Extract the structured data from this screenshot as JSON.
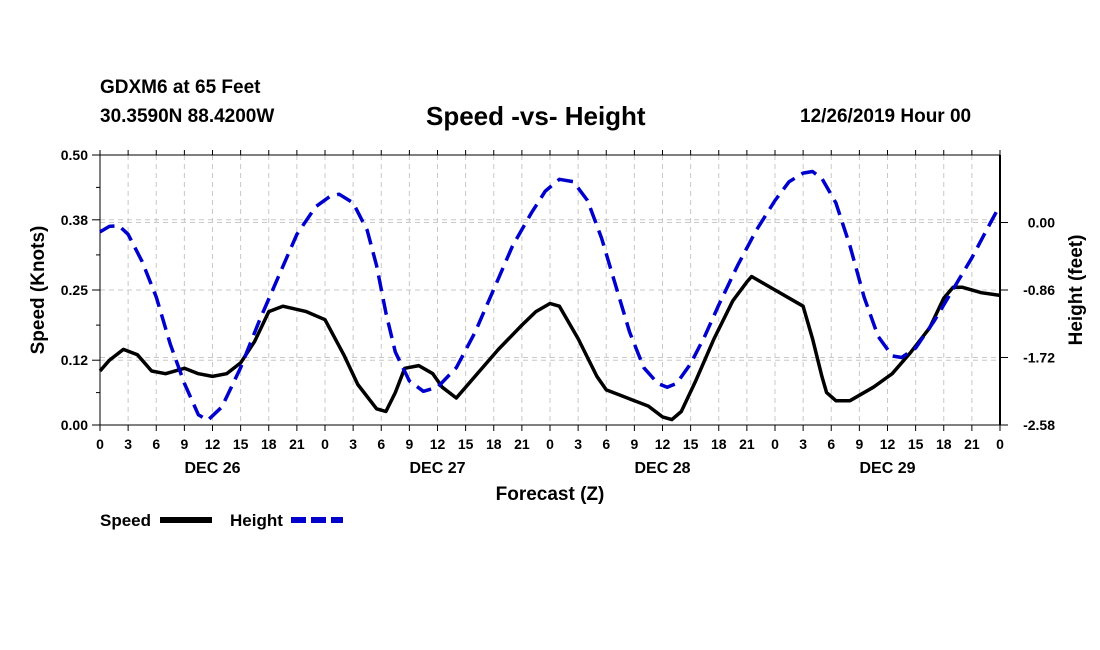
{
  "header": {
    "station": "GDXM6 at 65 Feet",
    "coords": "30.3590N 88.4200W",
    "title": "Speed -vs- Height",
    "date": "12/26/2019 Hour 00"
  },
  "chart_data": {
    "type": "line",
    "title": "Speed -vs- Height",
    "xlabel": "Forecast (Z)",
    "ylabel": "Speed (Knots)",
    "y2label": "Height (feet)",
    "x_range_hours": [
      0,
      96
    ],
    "ylim": [
      0,
      0.5
    ],
    "y2lim": [
      -2.58,
      0.86
    ],
    "grid": true,
    "legend_position": "bottom-left",
    "x_tick_labels": [
      "0",
      "3",
      "6",
      "9",
      "12",
      "15",
      "18",
      "21",
      "0",
      "3",
      "6",
      "9",
      "12",
      "15",
      "18",
      "21",
      "0",
      "3",
      "6",
      "9",
      "12",
      "15",
      "18",
      "21",
      "0",
      "3",
      "6",
      "9",
      "12",
      "15",
      "18",
      "21",
      "0"
    ],
    "y_tick_labels": [
      "0.00",
      "0.12",
      "0.25",
      "0.38",
      "0.50"
    ],
    "y2_tick_labels": [
      "0.00",
      "-0.86",
      "-1.72",
      "-2.58"
    ],
    "day_labels": [
      {
        "label": "DEC 26",
        "hour": 12
      },
      {
        "label": "DEC 27",
        "hour": 36
      },
      {
        "label": "DEC 28",
        "hour": 60
      },
      {
        "label": "DEC 29",
        "hour": 84
      }
    ],
    "series": [
      {
        "name": "Speed",
        "color": "#000000",
        "dash": "solid",
        "axis": "left",
        "points": [
          [
            0,
            0.1
          ],
          [
            1,
            0.12
          ],
          [
            2.5,
            0.14
          ],
          [
            4,
            0.13
          ],
          [
            5.5,
            0.1
          ],
          [
            7,
            0.095
          ],
          [
            9,
            0.105
          ],
          [
            10.5,
            0.095
          ],
          [
            12,
            0.09
          ],
          [
            13.5,
            0.095
          ],
          [
            15,
            0.115
          ],
          [
            16.5,
            0.155
          ],
          [
            18,
            0.21
          ],
          [
            19.5,
            0.22
          ],
          [
            22,
            0.21
          ],
          [
            24,
            0.195
          ],
          [
            26,
            0.13
          ],
          [
            27.5,
            0.075
          ],
          [
            29.5,
            0.03
          ],
          [
            30.5,
            0.025
          ],
          [
            31.5,
            0.06
          ],
          [
            32.5,
            0.105
          ],
          [
            34,
            0.11
          ],
          [
            35.5,
            0.095
          ],
          [
            36.5,
            0.07
          ],
          [
            38,
            0.05
          ],
          [
            40,
            0.09
          ],
          [
            42.5,
            0.14
          ],
          [
            45,
            0.185
          ],
          [
            46.5,
            0.21
          ],
          [
            48,
            0.225
          ],
          [
            49,
            0.22
          ],
          [
            51,
            0.16
          ],
          [
            53,
            0.09
          ],
          [
            54,
            0.065
          ],
          [
            55.5,
            0.055
          ],
          [
            57,
            0.045
          ],
          [
            58.5,
            0.035
          ],
          [
            60,
            0.015
          ],
          [
            61,
            0.01
          ],
          [
            62,
            0.025
          ],
          [
            63.5,
            0.08
          ],
          [
            65.5,
            0.16
          ],
          [
            67.5,
            0.23
          ],
          [
            69,
            0.265
          ],
          [
            69.5,
            0.275
          ],
          [
            70.5,
            0.265
          ],
          [
            72,
            0.25
          ],
          [
            74,
            0.23
          ],
          [
            75,
            0.22
          ],
          [
            76,
            0.16
          ],
          [
            77,
            0.09
          ],
          [
            77.5,
            0.06
          ],
          [
            78.5,
            0.045
          ],
          [
            80,
            0.045
          ],
          [
            82.5,
            0.07
          ],
          [
            84.5,
            0.095
          ],
          [
            86.5,
            0.135
          ],
          [
            88.5,
            0.18
          ],
          [
            90,
            0.235
          ],
          [
            91,
            0.255
          ],
          [
            92,
            0.255
          ],
          [
            94,
            0.245
          ],
          [
            96,
            0.24
          ]
        ]
      },
      {
        "name": "Height",
        "color": "#0000cc",
        "dash": "dashed",
        "axis": "right",
        "points": [
          [
            0,
            -0.12
          ],
          [
            1,
            -0.05
          ],
          [
            2,
            -0.04
          ],
          [
            3,
            -0.15
          ],
          [
            4.5,
            -0.5
          ],
          [
            6,
            -0.95
          ],
          [
            7.5,
            -1.55
          ],
          [
            9,
            -2.05
          ],
          [
            10.5,
            -2.45
          ],
          [
            11.5,
            -2.52
          ],
          [
            13,
            -2.35
          ],
          [
            15,
            -1.85
          ],
          [
            17,
            -1.25
          ],
          [
            19,
            -0.7
          ],
          [
            21,
            -0.15
          ],
          [
            23,
            0.2
          ],
          [
            24.5,
            0.33
          ],
          [
            25.5,
            0.36
          ],
          [
            27,
            0.25
          ],
          [
            28.5,
            -0.1
          ],
          [
            29.5,
            -0.55
          ],
          [
            30.5,
            -1.15
          ],
          [
            31.5,
            -1.65
          ],
          [
            33,
            -2.02
          ],
          [
            34.5,
            -2.15
          ],
          [
            36,
            -2.1
          ],
          [
            38,
            -1.85
          ],
          [
            40,
            -1.4
          ],
          [
            42,
            -0.85
          ],
          [
            44,
            -0.3
          ],
          [
            46,
            0.12
          ],
          [
            47.5,
            0.4
          ],
          [
            49,
            0.55
          ],
          [
            50.5,
            0.52
          ],
          [
            52,
            0.28
          ],
          [
            53.5,
            -0.2
          ],
          [
            55,
            -0.8
          ],
          [
            56.5,
            -1.4
          ],
          [
            58,
            -1.85
          ],
          [
            59.5,
            -2.05
          ],
          [
            60.5,
            -2.1
          ],
          [
            61.5,
            -2.05
          ],
          [
            63,
            -1.8
          ],
          [
            64.5,
            -1.45
          ],
          [
            66,
            -1.05
          ],
          [
            68,
            -0.55
          ],
          [
            70,
            -0.1
          ],
          [
            72,
            0.28
          ],
          [
            73.5,
            0.52
          ],
          [
            75,
            0.63
          ],
          [
            76,
            0.65
          ],
          [
            77,
            0.56
          ],
          [
            78.5,
            0.25
          ],
          [
            80,
            -0.3
          ],
          [
            81.5,
            -0.95
          ],
          [
            83,
            -1.45
          ],
          [
            84.5,
            -1.7
          ],
          [
            85.5,
            -1.72
          ],
          [
            87,
            -1.6
          ],
          [
            89,
            -1.25
          ],
          [
            91,
            -0.85
          ],
          [
            93,
            -0.45
          ],
          [
            95,
            0.0
          ],
          [
            96,
            0.22
          ]
        ]
      }
    ],
    "legend": [
      {
        "label": "Speed",
        "color": "#000000",
        "dash": "solid"
      },
      {
        "label": "Height",
        "color": "#0000cc",
        "dash": "dashed"
      }
    ]
  }
}
